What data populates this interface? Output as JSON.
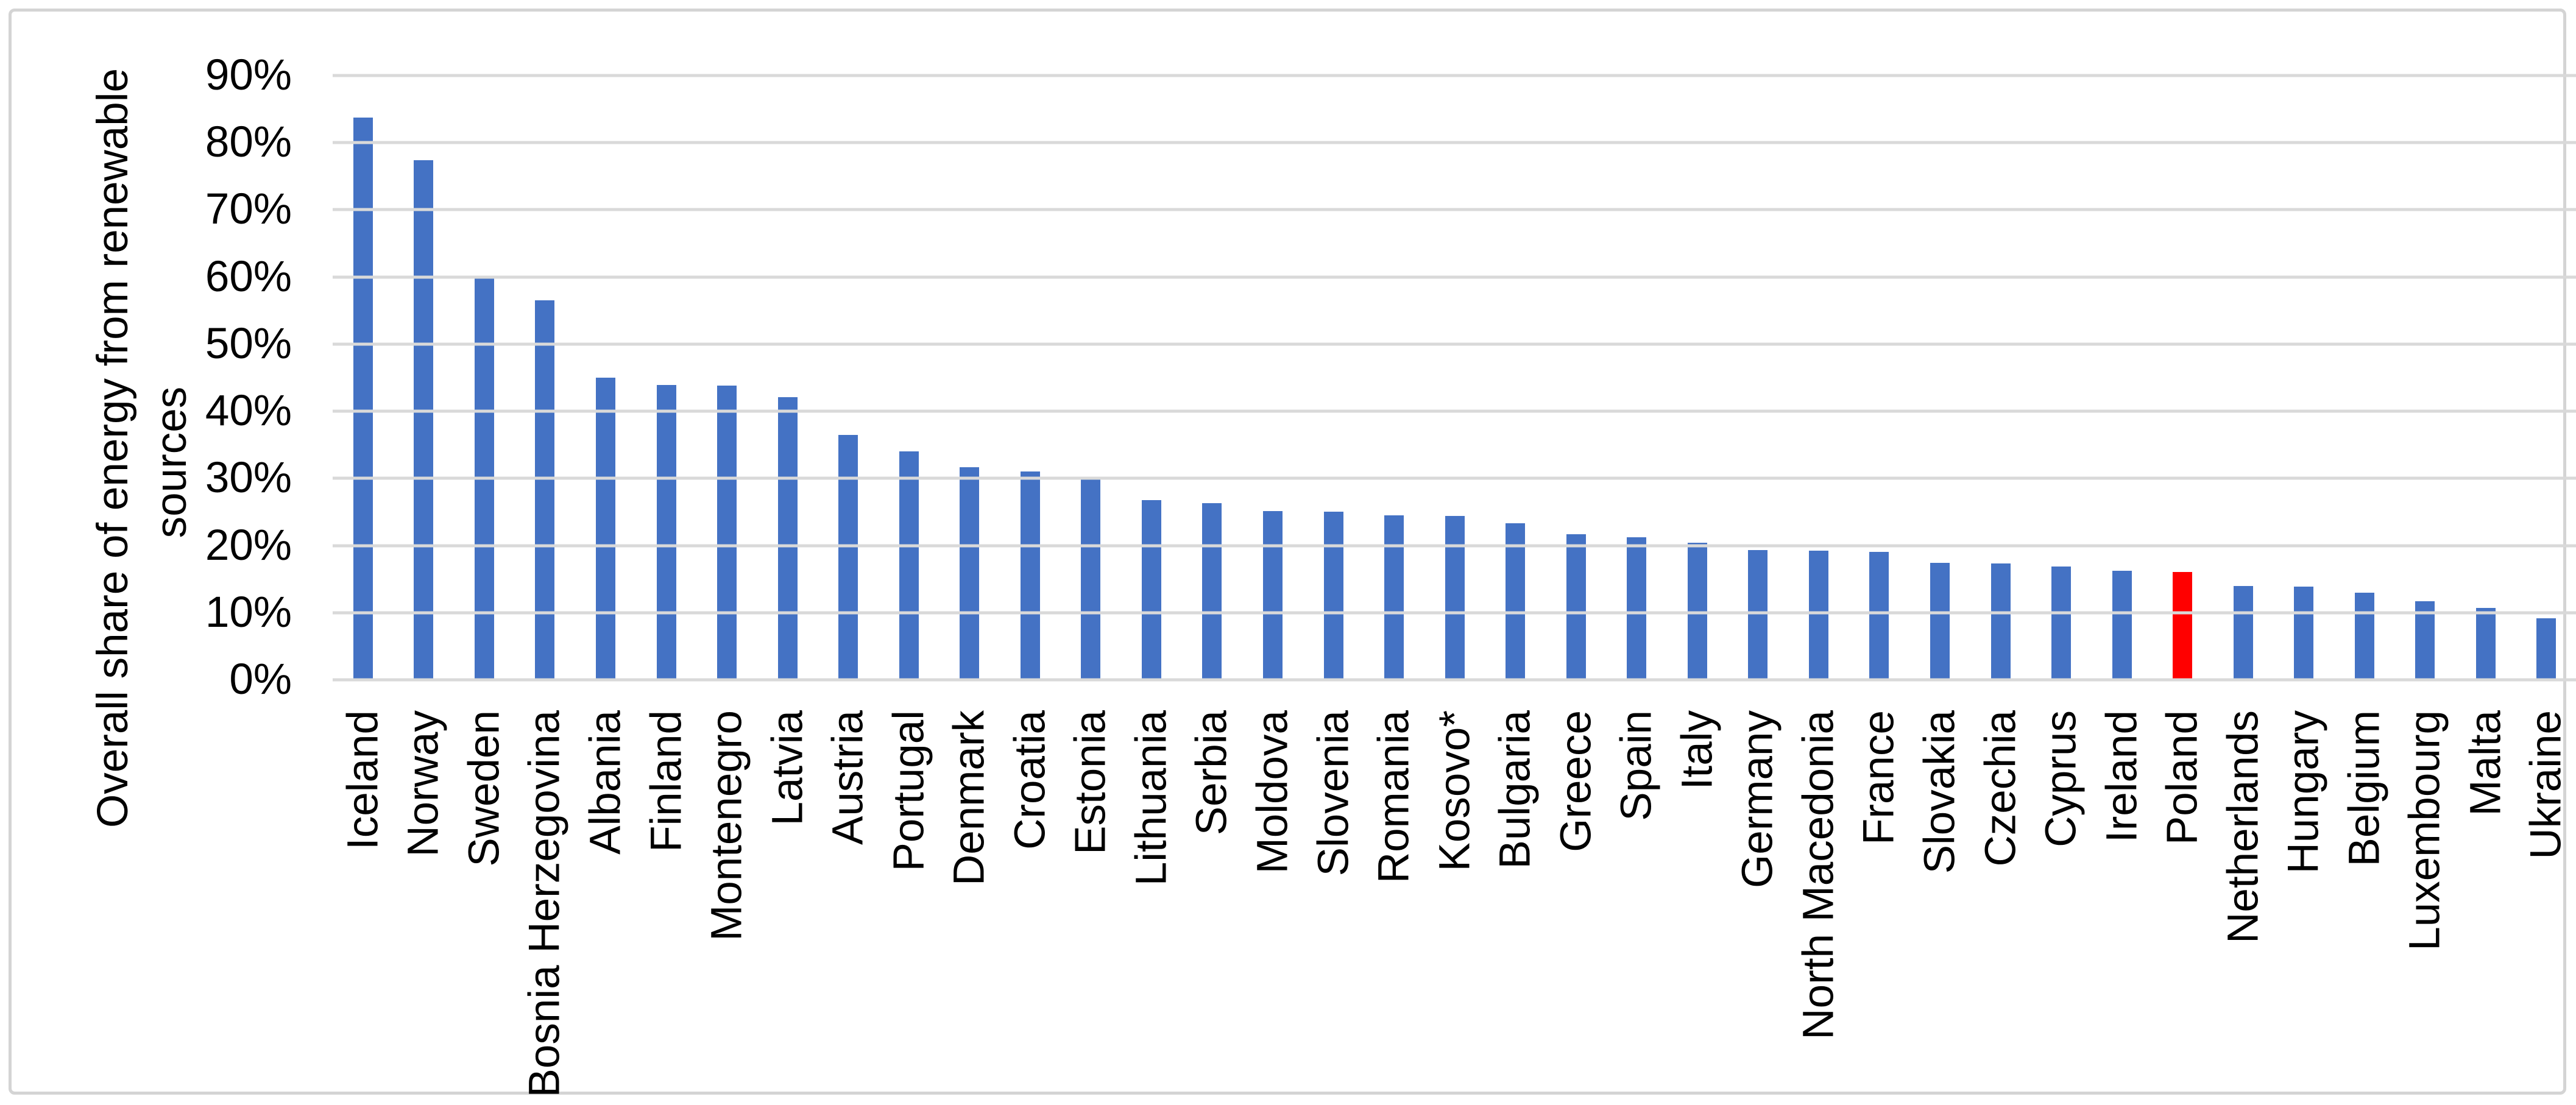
{
  "chart_data": {
    "type": "bar",
    "title": "",
    "ylabel": "Overall share of energy from renewable sources",
    "ylabel_lines": [
      "Overall share of energy from renewable",
      "sources"
    ],
    "ymin": 0,
    "ymax": 90,
    "ytick_labels": [
      "0%",
      "10%",
      "20%",
      "30%",
      "40%",
      "50%",
      "60%",
      "70%",
      "80%",
      "90%"
    ],
    "grid": "horizontal",
    "legend_position": "none",
    "bar_color": "#4472C4",
    "highlight_category": "Poland",
    "highlight_color": "#FF0000",
    "gridline_color": "#D9D9D9",
    "categories": [
      "Iceland",
      "Norway",
      "Sweden",
      "Bosnia Herzegovina",
      "Albania",
      "Finland",
      "Montenegro",
      "Latvia",
      "Austria",
      "Portugal",
      "Denmark",
      "Croatia",
      "Estonia",
      "Lithuania",
      "Serbia",
      "Moldova",
      "Slovenia",
      "Romania",
      "Kosovo*",
      "Bulgaria",
      "Greece",
      "Spain",
      "Italy",
      "Germany",
      "North Macedonia",
      "France",
      "Slovakia",
      "Czechia",
      "Cyprus",
      "Ireland",
      "Poland",
      "Netherlands",
      "Hungary",
      "Belgium",
      "Luxembourg",
      "Malta",
      "Ukraine"
    ],
    "values": [
      83.7,
      77.4,
      60.1,
      56.5,
      45.0,
      43.9,
      43.8,
      42.1,
      36.5,
      34.0,
      31.7,
      31.0,
      30.2,
      26.8,
      26.3,
      25.1,
      25.0,
      24.5,
      24.4,
      23.3,
      21.7,
      21.2,
      20.4,
      19.3,
      19.2,
      19.1,
      17.4,
      17.3,
      16.9,
      16.2,
      16.1,
      14.0,
      13.9,
      13.0,
      11.7,
      10.7,
      9.2
    ]
  }
}
